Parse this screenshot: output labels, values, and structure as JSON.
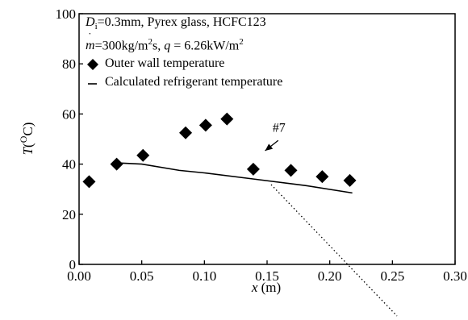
{
  "chart_data": {
    "type": "scatter",
    "title_lines": [
      [
        "D",
        "i",
        "=0.3mm, Pyrex glass, HCFC123"
      ],
      [
        "m",
        "=300kg/m",
        "2",
        "s, ",
        "q",
        " = 6.26kW/m",
        "2"
      ]
    ],
    "xlabel": "x (m)",
    "ylabel": "T(",
    "ylabel_unit_sup": "O",
    "ylabel_unit": "C)",
    "xlim": [
      0.0,
      0.3
    ],
    "ylim": [
      0,
      100
    ],
    "xticks": [
      "0.00",
      "0.05",
      "0.10",
      "0.15",
      "0.20",
      "0.25",
      "0.30"
    ],
    "xtick_values": [
      0.0,
      0.05,
      0.1,
      0.15,
      0.2,
      0.25,
      0.3
    ],
    "yticks": [
      "0",
      "20",
      "40",
      "60",
      "80",
      "100"
    ],
    "ytick_values": [
      0,
      20,
      40,
      60,
      80,
      100
    ],
    "grid": false,
    "legend_position": "upper-left",
    "series": [
      {
        "name": "Outer wall temperature",
        "marker": "diamond",
        "x": [
          0.008,
          0.03,
          0.051,
          0.085,
          0.101,
          0.118,
          0.139,
          0.169,
          0.194,
          0.216
        ],
        "y": [
          33,
          40,
          43.5,
          52.5,
          55.5,
          58,
          38,
          37.5,
          35,
          33.5
        ]
      },
      {
        "name": "Calculated refrigerant temperature",
        "marker": "line",
        "x": [
          0.03,
          0.05,
          0.08,
          0.1,
          0.14,
          0.18,
          0.218
        ],
        "y": [
          40.5,
          40,
          37.5,
          36.5,
          34,
          31.5,
          28.5
        ]
      }
    ],
    "annotations": [
      {
        "text": "#7",
        "x": 0.155,
        "y": 52,
        "arrow_to_x": 0.142,
        "arrow_to_y": 40.5
      }
    ]
  }
}
